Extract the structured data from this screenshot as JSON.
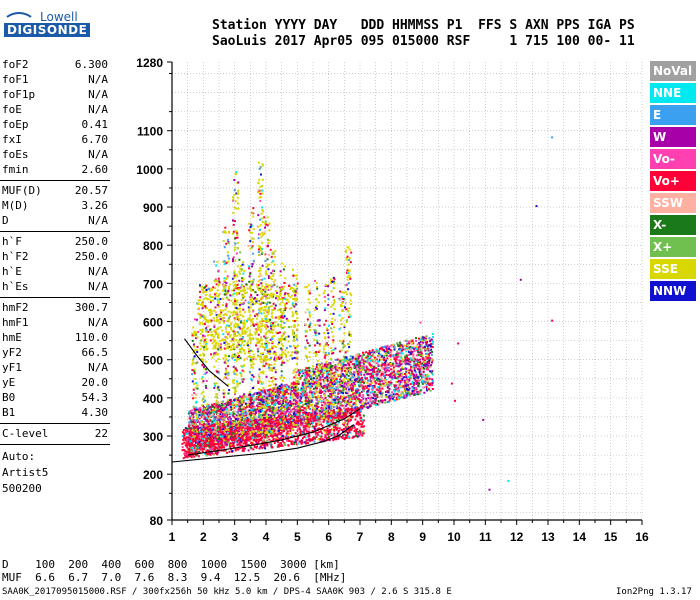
{
  "logo": {
    "line1": "Lowell",
    "line2": "DIGISONDE"
  },
  "header": {
    "line1": "Station YYYY DAY   DDD HHMMSS P1  FFS S AXN PPS IGA PS",
    "line2": "SaoLuis 2017 Apr05 095 015000 RSF     1 715 100 00- 11"
  },
  "params": [
    {
      "k": "foF2",
      "v": "6.300"
    },
    {
      "k": "foF1",
      "v": "N/A"
    },
    {
      "k": "foF1p",
      "v": "N/A"
    },
    {
      "k": "foE",
      "v": "N/A"
    },
    {
      "k": "foEp",
      "v": "0.41"
    },
    {
      "k": "fxI",
      "v": "6.70"
    },
    {
      "k": "foEs",
      "v": "N/A"
    },
    {
      "k": "fmin",
      "v": "2.60"
    },
    {
      "k": "MUF(D)",
      "v": "20.57"
    },
    {
      "k": "M(D)",
      "v": "3.26"
    },
    {
      "k": "D",
      "v": "N/A"
    },
    {
      "k": "h`F",
      "v": "250.0"
    },
    {
      "k": "h`F2",
      "v": "250.0"
    },
    {
      "k": "h`E",
      "v": "N/A"
    },
    {
      "k": "h`Es",
      "v": "N/A"
    },
    {
      "k": "hmF2",
      "v": "300.7"
    },
    {
      "k": "hmF1",
      "v": "N/A"
    },
    {
      "k": "hmE",
      "v": "110.0"
    },
    {
      "k": "yF2",
      "v": "66.5"
    },
    {
      "k": "yF1",
      "v": "N/A"
    },
    {
      "k": "yE",
      "v": "20.0"
    },
    {
      "k": "B0",
      "v": "54.3"
    },
    {
      "k": "B1",
      "v": "4.30"
    },
    {
      "k": "C-level",
      "v": "22"
    }
  ],
  "auto": {
    "l1": "Auto:",
    "l2": "Artist5",
    "l3": "500200"
  },
  "legend": [
    {
      "label": "NoVal",
      "color": "#a0a0a0"
    },
    {
      "label": "NNE",
      "color": "#00e8f0"
    },
    {
      "label": "E",
      "color": "#3ba0f0"
    },
    {
      "label": "W",
      "color": "#a800a8"
    },
    {
      "label": "Vo-",
      "color": "#ff40b0"
    },
    {
      "label": "Vo+",
      "color": "#ff0038"
    },
    {
      "label": "SSW",
      "color": "#ffb0a0"
    },
    {
      "label": "X-",
      "color": "#1a7a1a"
    },
    {
      "label": "X+",
      "color": "#70c050"
    },
    {
      "label": "SSE",
      "color": "#d8d800"
    },
    {
      "label": "NNW",
      "color": "#1010d0"
    }
  ],
  "chart_data": {
    "type": "scatter",
    "xlim": [
      1,
      16
    ],
    "ylim": [
      80,
      1280
    ],
    "x_ticks": [
      "1",
      "2",
      "3",
      "4",
      "5",
      "6",
      "7",
      "8",
      "9",
      "10",
      "11",
      "12",
      "13",
      "14",
      "15",
      "16"
    ],
    "y_ticks": [
      "80",
      "200",
      "300",
      "400",
      "500",
      "600",
      "700",
      "800",
      "900",
      "1000",
      "1100",
      "1280"
    ],
    "grid": true,
    "trace_lower": [
      [
        1.0,
        232
      ],
      [
        2.0,
        240
      ],
      [
        3.0,
        248
      ],
      [
        4.0,
        256
      ],
      [
        5.0,
        268
      ],
      [
        5.8,
        285
      ],
      [
        6.3,
        300
      ],
      [
        6.8,
        330
      ]
    ],
    "trace_upper": [
      [
        1.4,
        555
      ],
      [
        1.8,
        510
      ],
      [
        2.2,
        470
      ],
      [
        2.8,
        430
      ]
    ],
    "trace_mid": [
      [
        1.5,
        250
      ],
      [
        2.5,
        262
      ],
      [
        3.5,
        275
      ],
      [
        4.5,
        290
      ],
      [
        5.5,
        310
      ],
      [
        6.5,
        345
      ],
      [
        7.0,
        372
      ]
    ]
  },
  "bottom": {
    "d_line": "D    100  200  400  600  800  1000  1500  3000 [km]",
    "muf_line": "MUF  6.6  6.7  7.0  7.6  8.3  9.4  12.5  20.6  [MHz]",
    "file_line": "SAA0K_2017095015000.RSF / 300fx256h 50 kHz 5.0 km / DPS-4 SAA0K 903 / 2.6 S 315.8 E",
    "version": "Ion2Png 1.3.17"
  }
}
